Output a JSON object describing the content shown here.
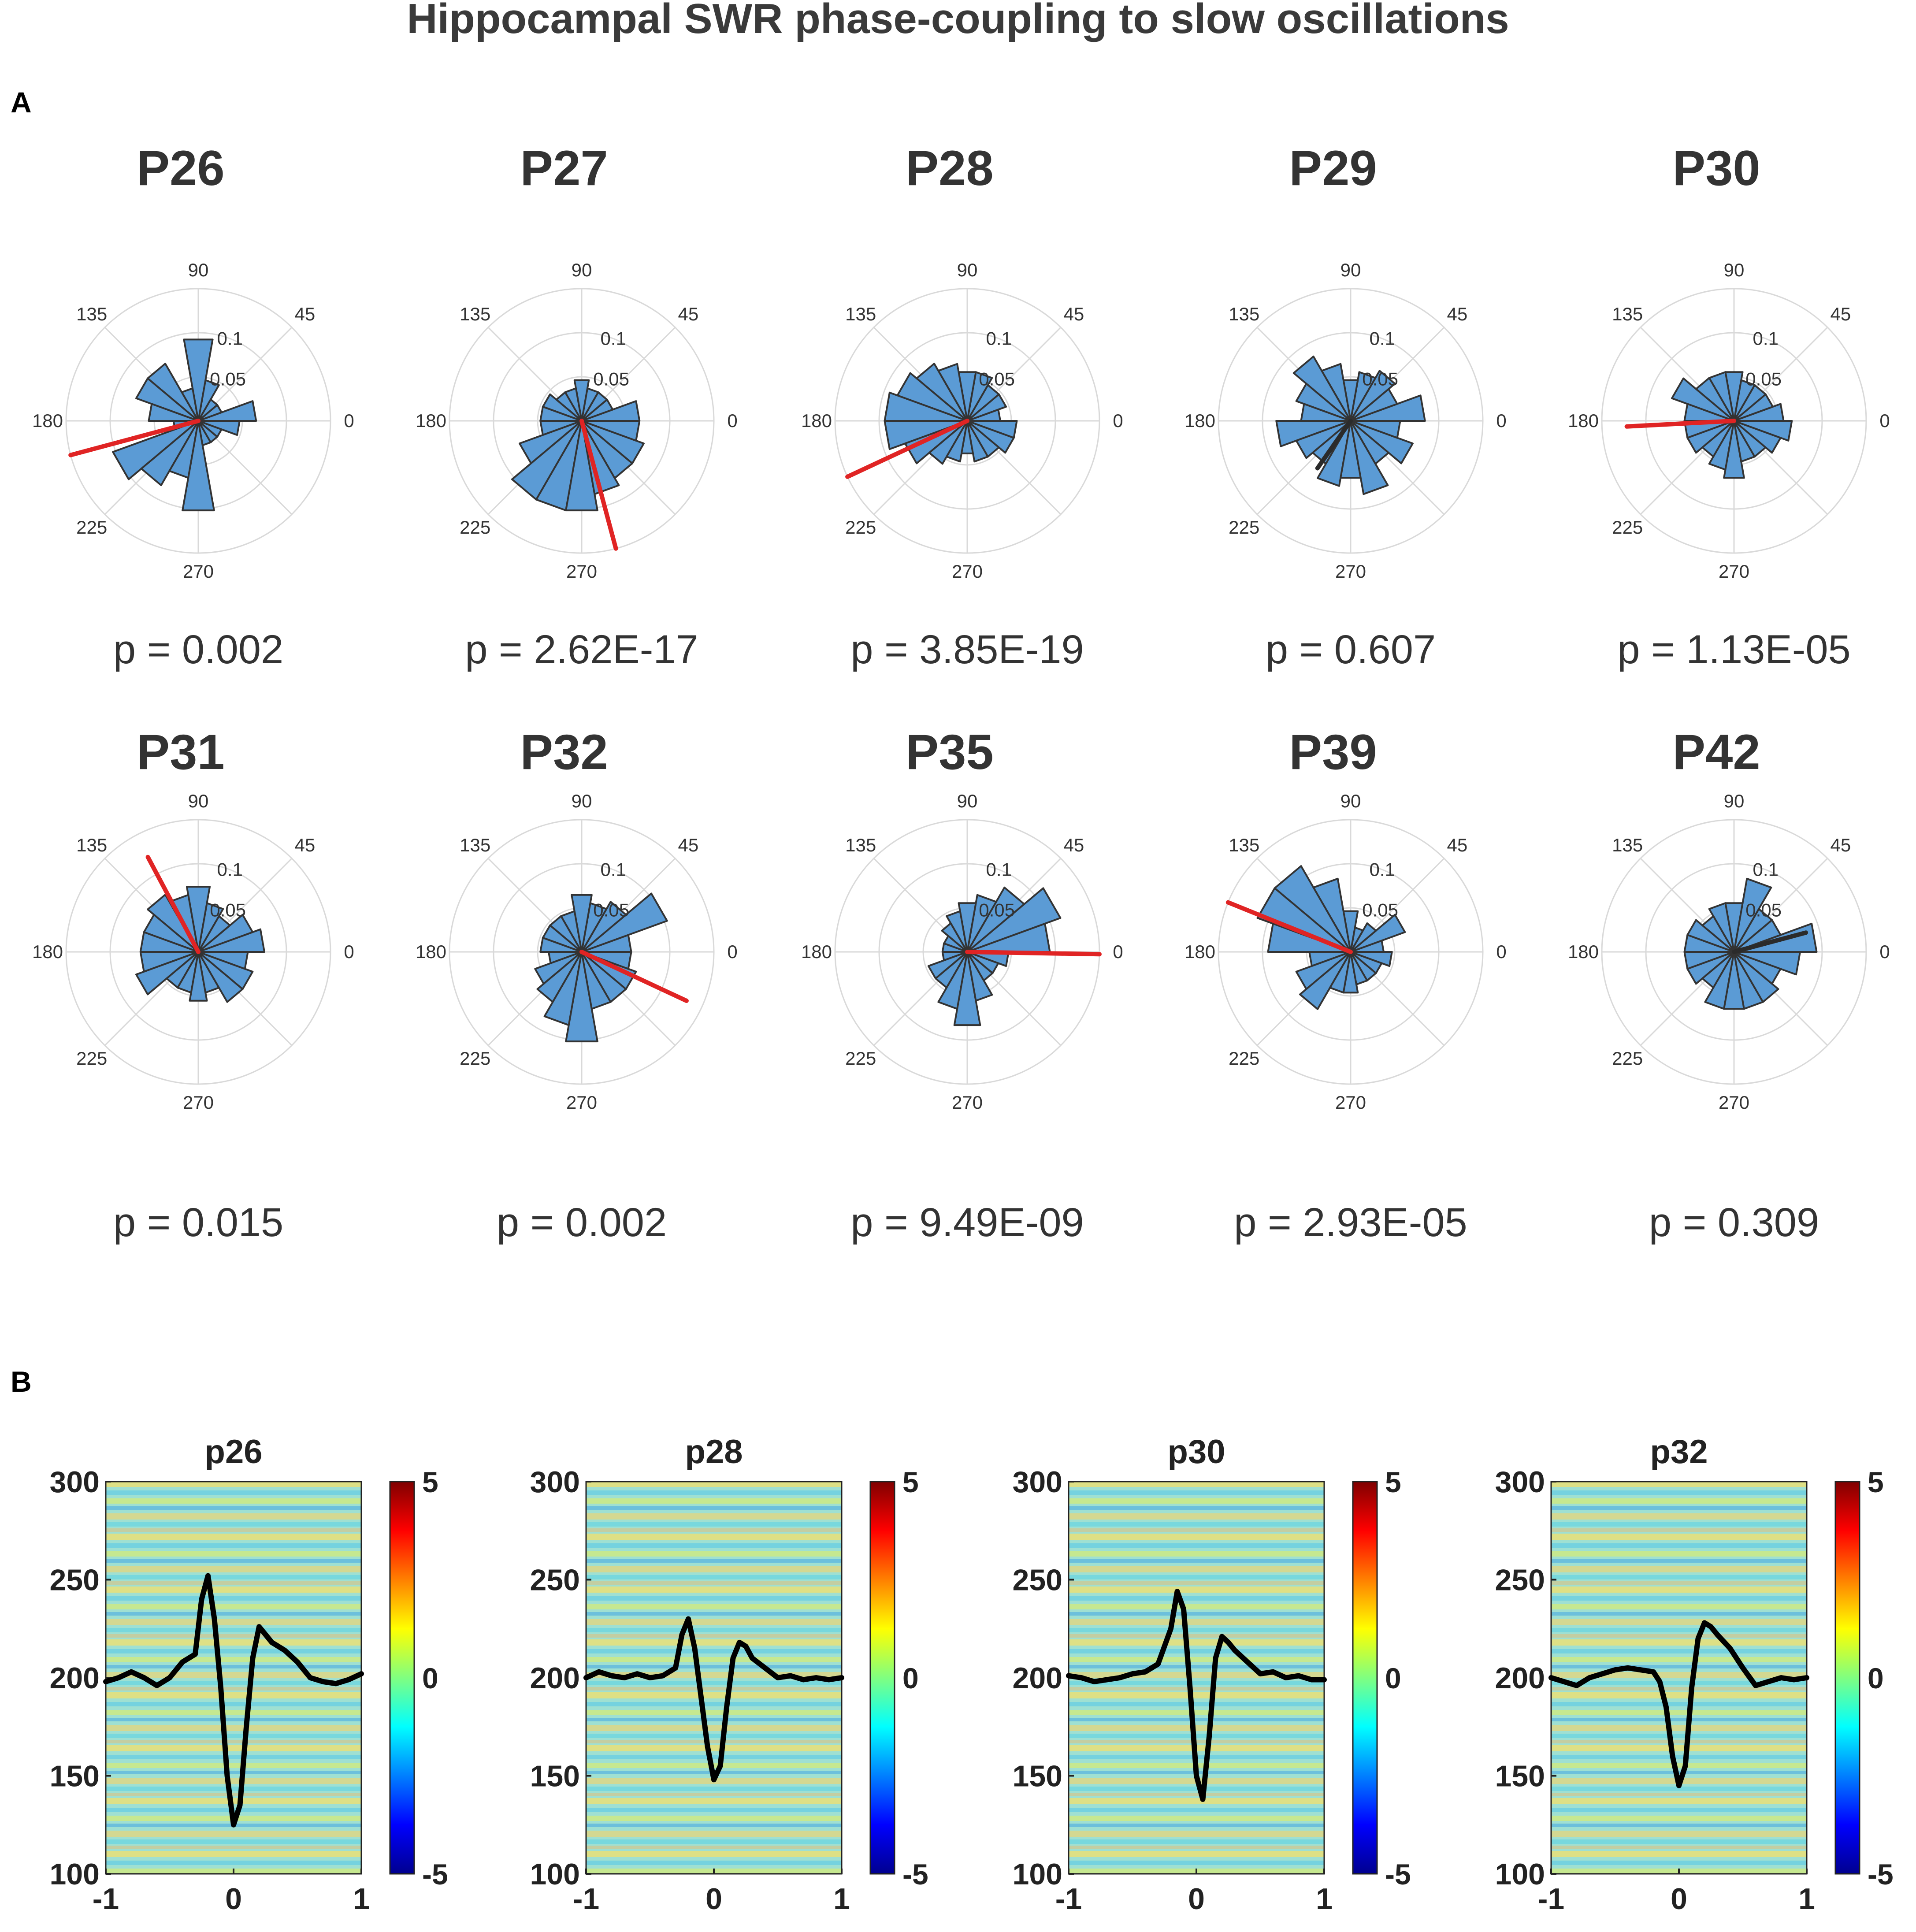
{
  "title": "Hippocampal SWR phase-coupling to slow oscillations",
  "colors": {
    "petal_fill": "#5b9bd5",
    "petal_edge": "#333333",
    "grid": "#d9d9d9",
    "significant_vector": "#e02424",
    "nonsignificant_vector": "#2b2b2b",
    "ref_trace": "#000000"
  },
  "chart_data": [
    {
      "panel": "A",
      "type": "polar-histogram",
      "angle_ticks": [
        "90",
        "45",
        "0",
        "135",
        "180",
        "225",
        "270"
      ],
      "radial_ticks": [
        "0.05",
        "0.1"
      ],
      "rmax": 0.16,
      "bin_width_deg": 20,
      "bins_start_deg": [
        0,
        20,
        40,
        60,
        80,
        100,
        120,
        140,
        160,
        180,
        200,
        220,
        240,
        260,
        280,
        300,
        320,
        340
      ],
      "subplots": [
        {
          "label": "P26",
          "p_text": "p = 0.002",
          "mean_angle_deg": 195,
          "vector_length": 0.16,
          "significant": true,
          "probabilities": [
            0.07,
            0.03,
            0.03,
            0.05,
            0.1,
            0.04,
            0.08,
            0.08,
            0.06,
            0.03,
            0.11,
            0.09,
            0.07,
            0.11,
            0.03,
            0.03,
            0.03,
            0.05
          ]
        },
        {
          "label": "P27",
          "p_text": "p = 2.62E-17",
          "mean_angle_deg": 285,
          "vector_length": 0.16,
          "significant": true,
          "probabilities": [
            0.07,
            0.04,
            0.04,
            0.04,
            0.05,
            0.04,
            0.04,
            0.05,
            0.05,
            0.05,
            0.08,
            0.11,
            0.11,
            0.11,
            0.09,
            0.08,
            0.08,
            0.07
          ]
        },
        {
          "label": "P28",
          "p_text": "p = 3.85E-19",
          "mean_angle_deg": 205,
          "vector_length": 0.16,
          "significant": true,
          "probabilities": [
            0.04,
            0.05,
            0.05,
            0.06,
            0.06,
            0.07,
            0.08,
            0.09,
            0.1,
            0.1,
            0.08,
            0.06,
            0.05,
            0.04,
            0.05,
            0.05,
            0.06,
            0.06
          ]
        },
        {
          "label": "P29",
          "p_text": "p = 0.607",
          "mean_angle_deg": 235,
          "vector_length": 0.07,
          "significant": false,
          "probabilities": [
            0.09,
            0.06,
            0.07,
            0.06,
            0.05,
            0.07,
            0.09,
            0.07,
            0.06,
            0.09,
            0.07,
            0.06,
            0.08,
            0.07,
            0.09,
            0.06,
            0.08,
            0.06
          ]
        },
        {
          "label": "P30",
          "p_text": "p = 1.13E-05",
          "mean_angle_deg": 183,
          "vector_length": 0.13,
          "significant": true,
          "probabilities": [
            0.06,
            0.05,
            0.05,
            0.05,
            0.06,
            0.06,
            0.06,
            0.08,
            0.06,
            0.06,
            0.06,
            0.05,
            0.06,
            0.07,
            0.05,
            0.05,
            0.06,
            0.07
          ]
        },
        {
          "label": "P31",
          "p_text": "p = 0.015",
          "mean_angle_deg": 118,
          "vector_length": 0.13,
          "significant": true,
          "probabilities": [
            0.08,
            0.07,
            0.05,
            0.06,
            0.08,
            0.07,
            0.08,
            0.07,
            0.07,
            0.07,
            0.08,
            0.05,
            0.05,
            0.06,
            0.05,
            0.07,
            0.07,
            0.06
          ]
        },
        {
          "label": "P32",
          "p_text": "p = 0.002",
          "mean_angle_deg": 335,
          "vector_length": 0.14,
          "significant": true,
          "probabilities": [
            0.06,
            0.11,
            0.07,
            0.06,
            0.07,
            0.05,
            0.05,
            0.05,
            0.05,
            0.04,
            0.06,
            0.07,
            0.09,
            0.11,
            0.07,
            0.07,
            0.07,
            0.06
          ]
        },
        {
          "label": "P35",
          "p_text": "p = 9.49E-09",
          "mean_angle_deg": 359,
          "vector_length": 0.16,
          "significant": true,
          "probabilities": [
            0.1,
            0.12,
            0.09,
            0.07,
            0.06,
            0.05,
            0.04,
            0.03,
            0.03,
            0.03,
            0.05,
            0.05,
            0.07,
            0.09,
            0.06,
            0.04,
            0.04,
            0.05
          ]
        },
        {
          "label": "P39",
          "p_text": "p = 2.93E-05",
          "mean_angle_deg": 158,
          "vector_length": 0.16,
          "significant": true,
          "probabilities": [
            0.04,
            0.07,
            0.04,
            0.03,
            0.05,
            0.09,
            0.12,
            0.12,
            0.1,
            0.05,
            0.07,
            0.08,
            0.05,
            0.05,
            0.04,
            0.04,
            0.04,
            0.05
          ]
        },
        {
          "label": "P42",
          "p_text": "p = 0.309",
          "mean_angle_deg": 15,
          "vector_length": 0.09,
          "significant": false,
          "probabilities": [
            0.1,
            0.06,
            0.06,
            0.09,
            0.06,
            0.06,
            0.05,
            0.06,
            0.06,
            0.06,
            0.06,
            0.05,
            0.07,
            0.07,
            0.07,
            0.07,
            0.06,
            0.08
          ]
        }
      ]
    },
    {
      "panel": "B",
      "type": "heatmap",
      "x_ticks": [
        "-1",
        "0",
        "1"
      ],
      "xlim": [
        -1,
        1
      ],
      "y_ticks": [
        "300",
        "250",
        "200",
        "150",
        "100"
      ],
      "ylim": [
        100,
        300
      ],
      "colorbar_ticks": [
        "5",
        "0",
        "-5"
      ],
      "colorbar_range": [
        -5,
        5
      ],
      "overlay": "average LFP trace (black), y axis units",
      "subplots": [
        {
          "title": "p26",
          "trace_x": [
            -1,
            -0.9,
            -0.8,
            -0.7,
            -0.6,
            -0.5,
            -0.4,
            -0.3,
            -0.25,
            -0.2,
            -0.15,
            -0.1,
            -0.05,
            0,
            0.05,
            0.1,
            0.15,
            0.2,
            0.25,
            0.3,
            0.4,
            0.5,
            0.6,
            0.7,
            0.8,
            0.9,
            1
          ],
          "trace_y": [
            198,
            200,
            203,
            200,
            196,
            200,
            208,
            212,
            240,
            252,
            230,
            195,
            150,
            125,
            135,
            175,
            210,
            226,
            222,
            218,
            214,
            208,
            200,
            198,
            197,
            199,
            202
          ]
        },
        {
          "title": "p28",
          "trace_x": [
            -1,
            -0.9,
            -0.8,
            -0.7,
            -0.6,
            -0.5,
            -0.4,
            -0.3,
            -0.25,
            -0.2,
            -0.15,
            -0.1,
            -0.05,
            0,
            0.05,
            0.1,
            0.15,
            0.2,
            0.25,
            0.3,
            0.4,
            0.5,
            0.6,
            0.7,
            0.8,
            0.9,
            1
          ],
          "trace_y": [
            200,
            203,
            201,
            200,
            202,
            200,
            201,
            205,
            222,
            230,
            215,
            190,
            165,
            148,
            155,
            185,
            210,
            218,
            216,
            210,
            205,
            200,
            201,
            199,
            200,
            199,
            200
          ]
        },
        {
          "title": "p30",
          "trace_x": [
            -1,
            -0.9,
            -0.8,
            -0.7,
            -0.6,
            -0.5,
            -0.4,
            -0.3,
            -0.2,
            -0.15,
            -0.1,
            -0.05,
            0,
            0.05,
            0.1,
            0.15,
            0.2,
            0.25,
            0.3,
            0.4,
            0.5,
            0.6,
            0.7,
            0.8,
            0.9,
            1
          ],
          "trace_y": [
            201,
            200,
            198,
            199,
            200,
            202,
            203,
            207,
            225,
            244,
            235,
            195,
            150,
            138,
            170,
            210,
            221,
            218,
            214,
            208,
            202,
            203,
            200,
            201,
            199,
            199
          ]
        },
        {
          "title": "p32",
          "trace_x": [
            -1,
            -0.9,
            -0.8,
            -0.7,
            -0.6,
            -0.5,
            -0.4,
            -0.3,
            -0.2,
            -0.15,
            -0.1,
            -0.05,
            0,
            0.05,
            0.1,
            0.15,
            0.2,
            0.25,
            0.3,
            0.4,
            0.5,
            0.6,
            0.7,
            0.8,
            0.9,
            1
          ],
          "trace_y": [
            200,
            198,
            196,
            200,
            202,
            204,
            205,
            204,
            203,
            198,
            185,
            160,
            145,
            155,
            195,
            220,
            228,
            226,
            222,
            215,
            205,
            196,
            198,
            200,
            199,
            200
          ]
        }
      ]
    }
  ],
  "panel_labels": {
    "a": "A",
    "b": "B"
  }
}
